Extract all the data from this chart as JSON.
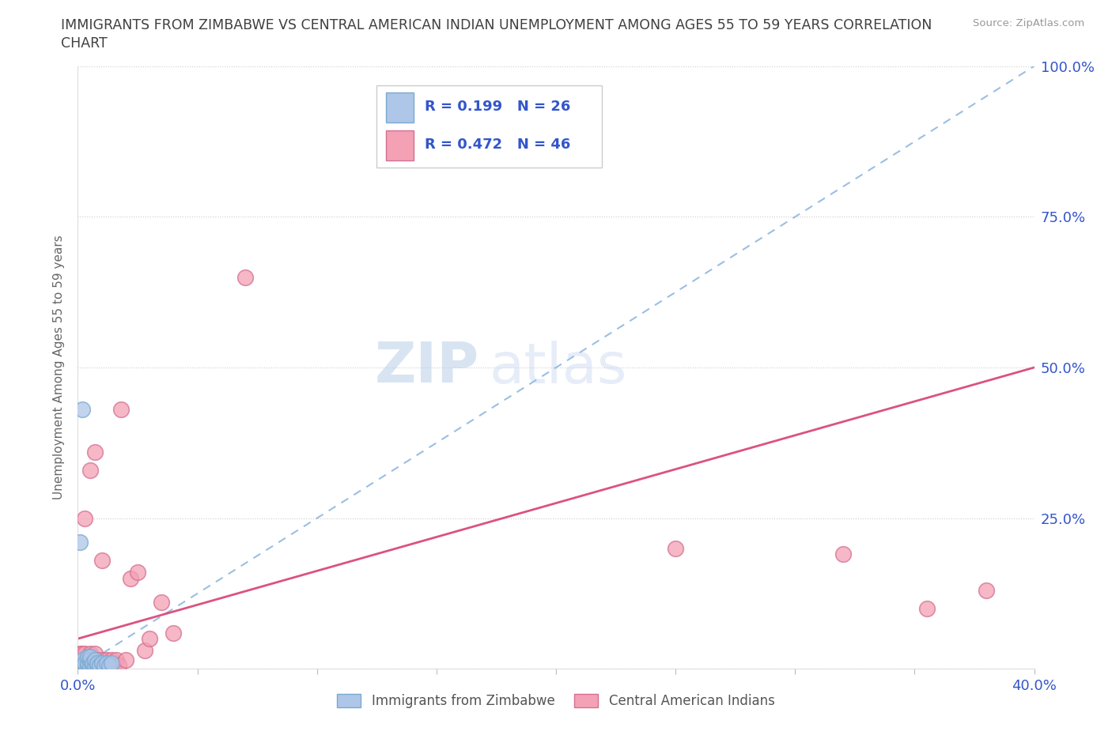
{
  "title_line1": "IMMIGRANTS FROM ZIMBABWE VS CENTRAL AMERICAN INDIAN UNEMPLOYMENT AMONG AGES 55 TO 59 YEARS CORRELATION",
  "title_line2": "CHART",
  "source": "Source: ZipAtlas.com",
  "ylabel": "Unemployment Among Ages 55 to 59 years",
  "xlim": [
    0.0,
    0.4
  ],
  "ylim": [
    0.0,
    1.0
  ],
  "legend1_R": "0.199",
  "legend1_N": "26",
  "legend2_R": "0.472",
  "legend2_N": "46",
  "color_zimbabwe": "#aec6e8",
  "color_zimbabwe_edge": "#7aaad0",
  "color_pink": "#f4a0b5",
  "color_pink_edge": "#d47090",
  "color_blue_line": "#90b8e0",
  "color_pink_line": "#d84070",
  "color_title": "#404040",
  "color_legend_text": "#3355cc",
  "color_axis_text": "#3355cc",
  "color_source": "#999999",
  "color_ylabel": "#666666",
  "color_grid": "#cccccc",
  "watermark_color": "#ccddf0",
  "zim_x": [
    0.001,
    0.001,
    0.002,
    0.002,
    0.003,
    0.003,
    0.004,
    0.004,
    0.004,
    0.005,
    0.005,
    0.005,
    0.006,
    0.006,
    0.007,
    0.007,
    0.008,
    0.008,
    0.009,
    0.01,
    0.011,
    0.012,
    0.013,
    0.014,
    0.001,
    0.002
  ],
  "zim_y": [
    0.005,
    0.01,
    0.005,
    0.015,
    0.005,
    0.01,
    0.005,
    0.01,
    0.02,
    0.005,
    0.015,
    0.02,
    0.005,
    0.01,
    0.005,
    0.015,
    0.005,
    0.01,
    0.005,
    0.01,
    0.005,
    0.01,
    0.005,
    0.01,
    0.21,
    0.43
  ],
  "pink_x": [
    0.001,
    0.001,
    0.001,
    0.002,
    0.002,
    0.002,
    0.003,
    0.003,
    0.003,
    0.004,
    0.004,
    0.005,
    0.005,
    0.006,
    0.006,
    0.007,
    0.007,
    0.008,
    0.008,
    0.009,
    0.01,
    0.01,
    0.011,
    0.012,
    0.013,
    0.014,
    0.015,
    0.016,
    0.017,
    0.018,
    0.02,
    0.022,
    0.025,
    0.028,
    0.03,
    0.035,
    0.04,
    0.003,
    0.005,
    0.007,
    0.07,
    0.25,
    0.32,
    0.355,
    0.38,
    0.01
  ],
  "pink_y": [
    0.005,
    0.015,
    0.025,
    0.005,
    0.015,
    0.025,
    0.005,
    0.015,
    0.025,
    0.005,
    0.015,
    0.005,
    0.025,
    0.005,
    0.015,
    0.005,
    0.025,
    0.005,
    0.015,
    0.005,
    0.005,
    0.015,
    0.005,
    0.015,
    0.005,
    0.015,
    0.005,
    0.015,
    0.005,
    0.43,
    0.015,
    0.15,
    0.16,
    0.03,
    0.05,
    0.11,
    0.06,
    0.25,
    0.33,
    0.36,
    0.65,
    0.2,
    0.19,
    0.1,
    0.13,
    0.18
  ],
  "blue_line_x0": 0.0,
  "blue_line_y0": 0.0,
  "blue_line_x1": 0.4,
  "blue_line_y1": 1.0,
  "pink_line_x0": 0.0,
  "pink_line_y0": 0.05,
  "pink_line_x1": 0.4,
  "pink_line_y1": 0.5
}
